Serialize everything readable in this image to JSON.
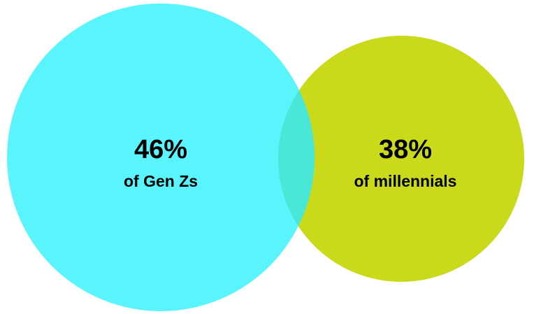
{
  "diagram": {
    "type": "venn",
    "sets": [
      {
        "value": "46%",
        "caption": "of Gen Zs",
        "color": "#5af4fd"
      },
      {
        "value": "38%",
        "caption": "of millennials",
        "color": "#cad91a"
      }
    ],
    "overlap_color": "#48e7d8"
  }
}
